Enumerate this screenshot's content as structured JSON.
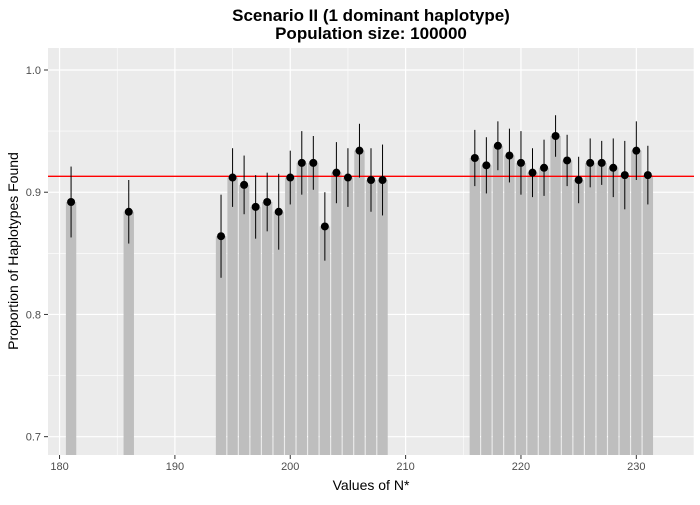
{
  "chart_data": {
    "type": "bar",
    "title_line1": "Scenario II (1 dominant haplotype)",
    "title_line2": "Population size: 100000",
    "xlabel": "Values of N*",
    "ylabel": "Proportion of Haplotypes Found",
    "xlim": [
      179,
      235
    ],
    "ylim": [
      0.685,
      1.018
    ],
    "x_ticks": [
      {
        "value": 180,
        "label": "180"
      },
      {
        "value": 190,
        "label": "190"
      },
      {
        "value": 200,
        "label": "200"
      },
      {
        "value": 210,
        "label": "210"
      },
      {
        "value": 220,
        "label": "220"
      },
      {
        "value": 230,
        "label": "230"
      }
    ],
    "y_ticks": [
      {
        "value": 0.7,
        "label": "0.7"
      },
      {
        "value": 0.8,
        "label": "0.8"
      },
      {
        "value": 0.9,
        "label": "0.9"
      },
      {
        "value": 1.0,
        "label": "1.0"
      }
    ],
    "reference_line": {
      "value": 0.913,
      "color": "#ff0000"
    },
    "grid": true,
    "colors": {
      "panel": "#ebebeb",
      "gridline": "#ffffff",
      "bar": "#bebebe",
      "point": "#000000",
      "errorbar": "#000000",
      "axis_text": "#4d4d4d"
    },
    "points": [
      {
        "x": 181,
        "y": 0.892,
        "lo": 0.863,
        "hi": 0.921
      },
      {
        "x": 186,
        "y": 0.884,
        "lo": 0.858,
        "hi": 0.91
      },
      {
        "x": 194,
        "y": 0.864,
        "lo": 0.83,
        "hi": 0.898
      },
      {
        "x": 195,
        "y": 0.912,
        "lo": 0.888,
        "hi": 0.936
      },
      {
        "x": 196,
        "y": 0.906,
        "lo": 0.882,
        "hi": 0.93
      },
      {
        "x": 197,
        "y": 0.888,
        "lo": 0.862,
        "hi": 0.914
      },
      {
        "x": 198,
        "y": 0.892,
        "lo": 0.868,
        "hi": 0.916
      },
      {
        "x": 199,
        "y": 0.884,
        "lo": 0.853,
        "hi": 0.915
      },
      {
        "x": 200,
        "y": 0.912,
        "lo": 0.89,
        "hi": 0.934
      },
      {
        "x": 201,
        "y": 0.924,
        "lo": 0.898,
        "hi": 0.95
      },
      {
        "x": 202,
        "y": 0.924,
        "lo": 0.902,
        "hi": 0.946
      },
      {
        "x": 203,
        "y": 0.872,
        "lo": 0.844,
        "hi": 0.9
      },
      {
        "x": 204,
        "y": 0.916,
        "lo": 0.891,
        "hi": 0.941
      },
      {
        "x": 205,
        "y": 0.912,
        "lo": 0.888,
        "hi": 0.936
      },
      {
        "x": 206,
        "y": 0.934,
        "lo": 0.912,
        "hi": 0.956
      },
      {
        "x": 207,
        "y": 0.91,
        "lo": 0.884,
        "hi": 0.936
      },
      {
        "x": 208,
        "y": 0.91,
        "lo": 0.881,
        "hi": 0.939
      },
      {
        "x": 216,
        "y": 0.928,
        "lo": 0.905,
        "hi": 0.951
      },
      {
        "x": 217,
        "y": 0.922,
        "lo": 0.899,
        "hi": 0.945
      },
      {
        "x": 218,
        "y": 0.938,
        "lo": 0.918,
        "hi": 0.958
      },
      {
        "x": 219,
        "y": 0.93,
        "lo": 0.908,
        "hi": 0.952
      },
      {
        "x": 220,
        "y": 0.924,
        "lo": 0.898,
        "hi": 0.95
      },
      {
        "x": 221,
        "y": 0.916,
        "lo": 0.896,
        "hi": 0.936
      },
      {
        "x": 222,
        "y": 0.92,
        "lo": 0.897,
        "hi": 0.943
      },
      {
        "x": 223,
        "y": 0.946,
        "lo": 0.929,
        "hi": 0.963
      },
      {
        "x": 224,
        "y": 0.926,
        "lo": 0.905,
        "hi": 0.947
      },
      {
        "x": 225,
        "y": 0.91,
        "lo": 0.891,
        "hi": 0.929
      },
      {
        "x": 226,
        "y": 0.924,
        "lo": 0.904,
        "hi": 0.944
      },
      {
        "x": 227,
        "y": 0.924,
        "lo": 0.906,
        "hi": 0.942
      },
      {
        "x": 228,
        "y": 0.92,
        "lo": 0.896,
        "hi": 0.944
      },
      {
        "x": 229,
        "y": 0.914,
        "lo": 0.886,
        "hi": 0.942
      },
      {
        "x": 230,
        "y": 0.934,
        "lo": 0.91,
        "hi": 0.958
      },
      {
        "x": 231,
        "y": 0.914,
        "lo": 0.89,
        "hi": 0.938
      }
    ]
  }
}
